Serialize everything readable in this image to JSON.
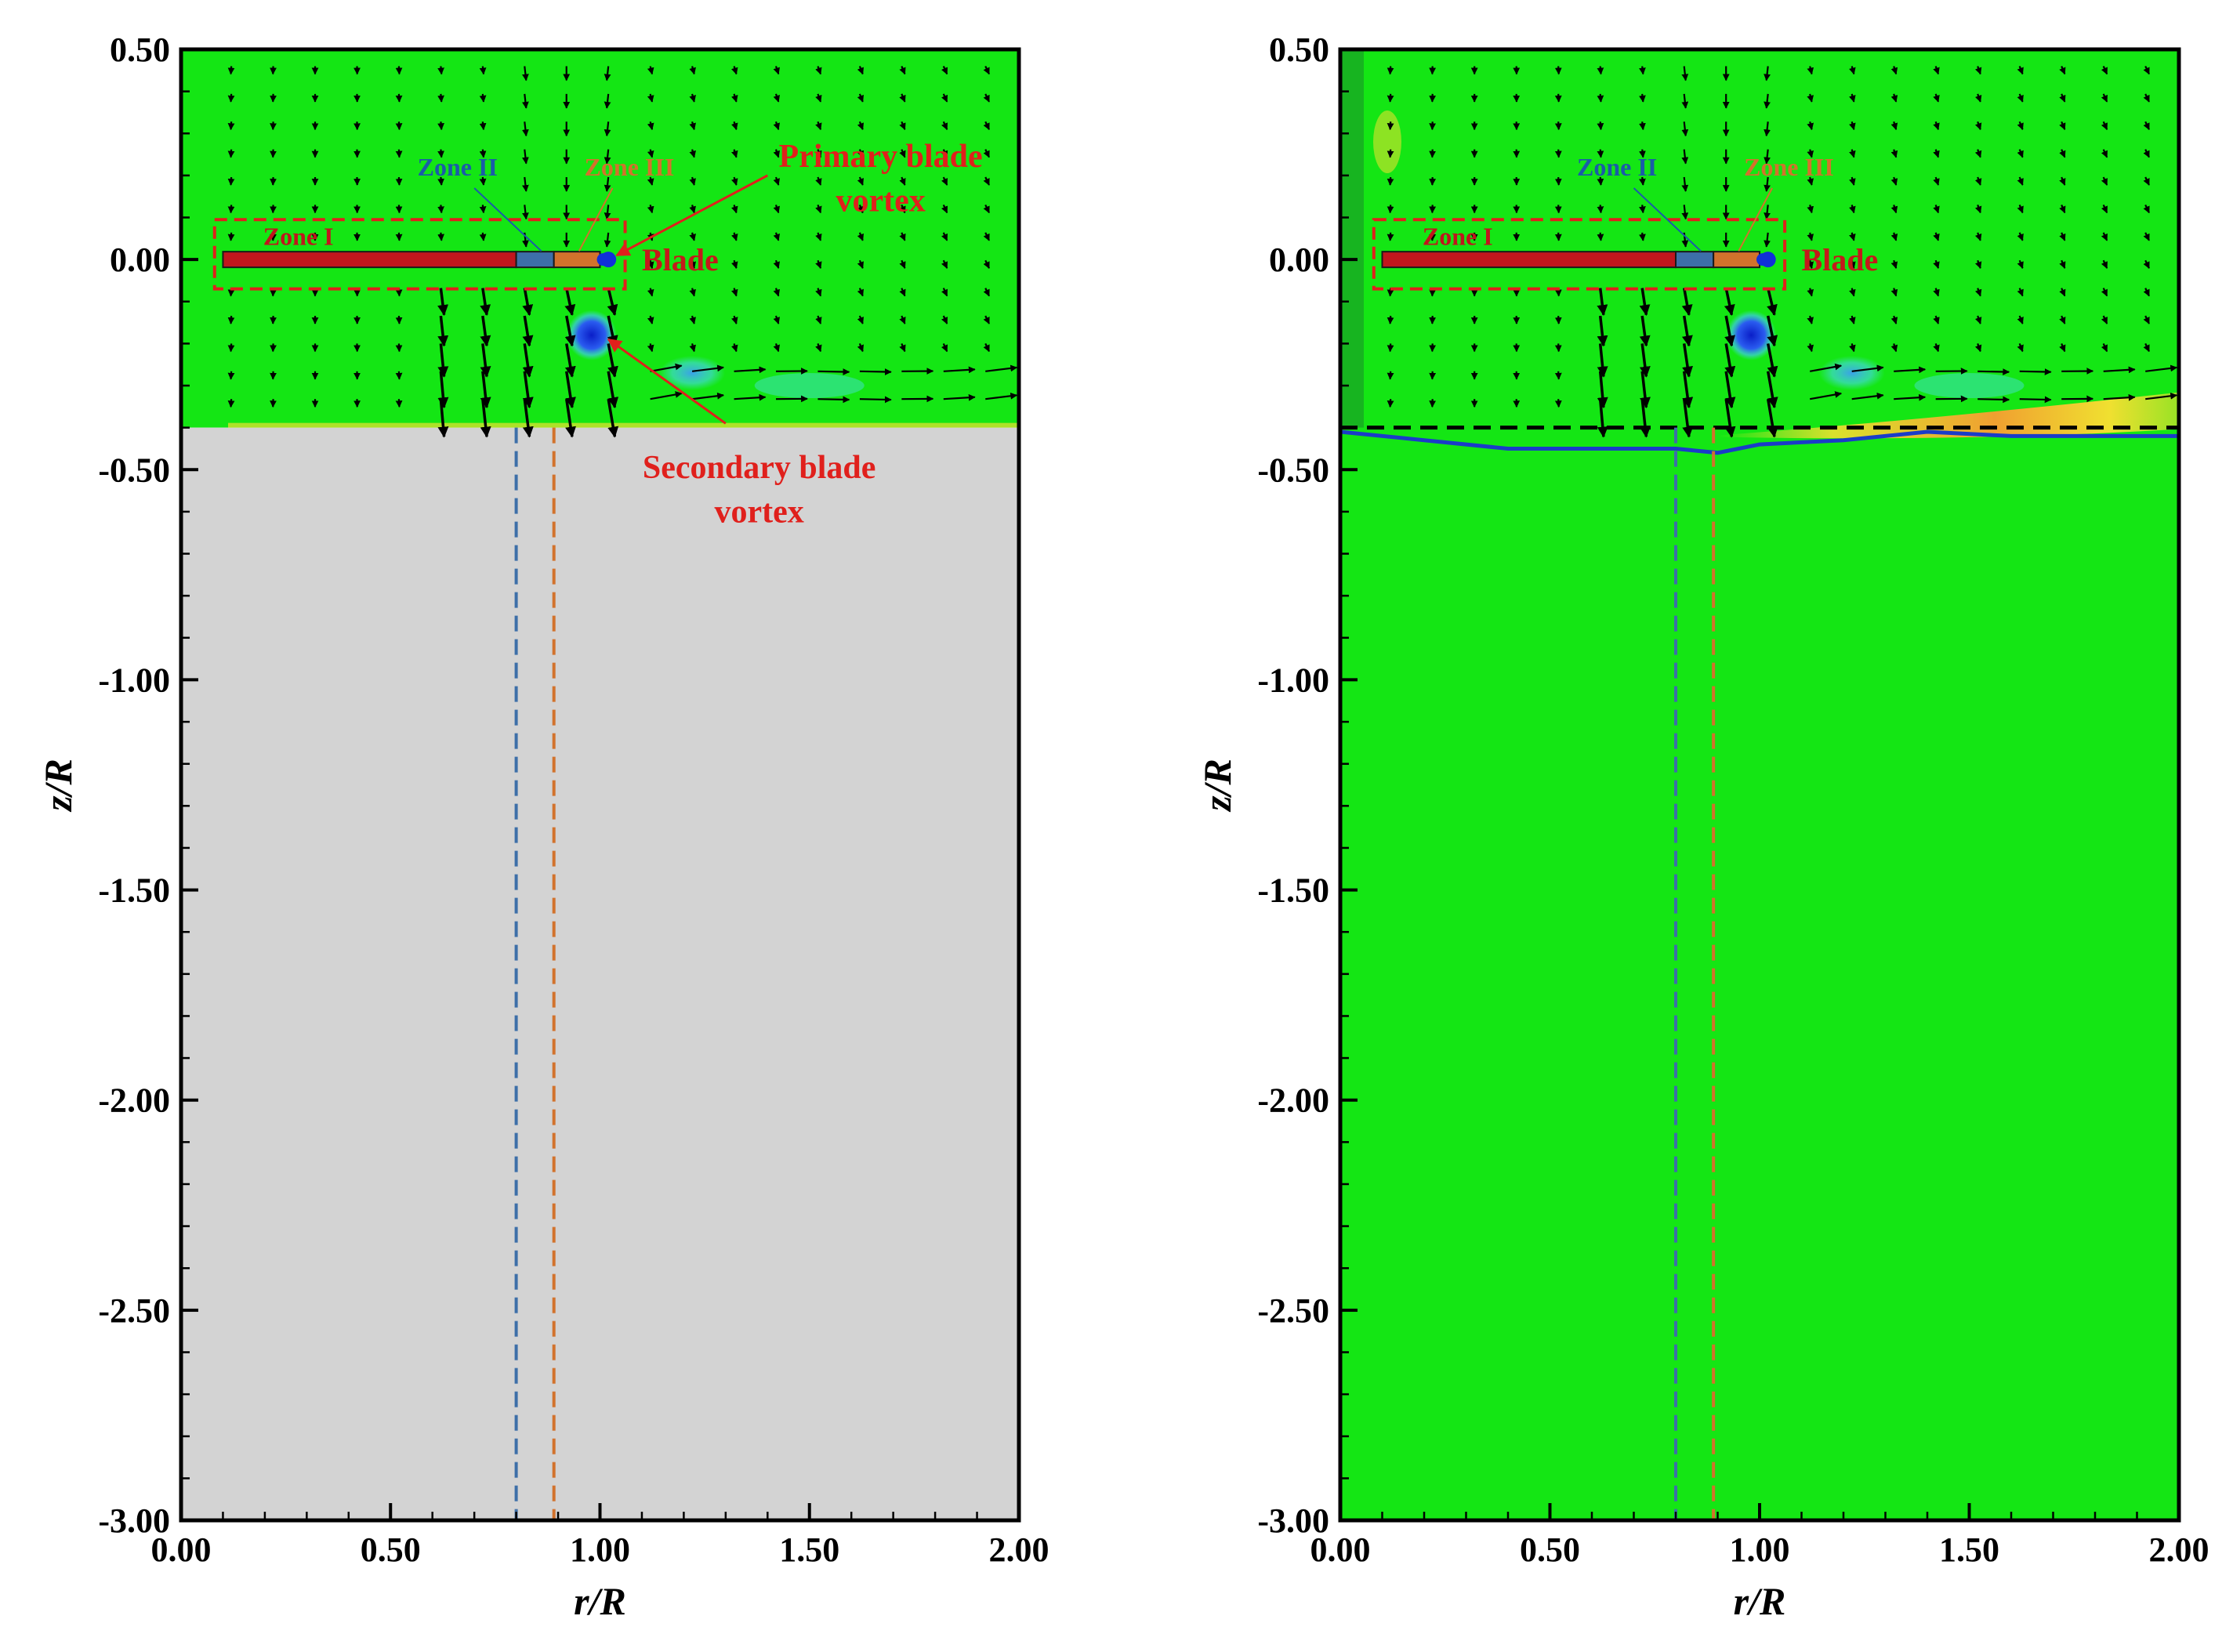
{
  "colors": {
    "flow_green": "#14e614",
    "gray_region": "#d3d3d3",
    "blade_red": "#c0161d",
    "zone2_blue": "#3d6fa8",
    "zone3_orange": "#d2722c",
    "annotation_red": "#e0201c",
    "vortex_blue": "#1030d8",
    "interface_blue": "#1a3cc8",
    "cyan": "#40e0c0",
    "yellow": "#f0e030",
    "orange": "#f07a20"
  },
  "chart_data": [
    {
      "type": "contour",
      "panel": "left",
      "xlabel": "r/R",
      "ylabel": "z/R",
      "xlim": [
        0.0,
        2.0
      ],
      "ylim": [
        -3.0,
        0.5
      ],
      "x_ticks": [
        "0.00",
        "0.50",
        "1.00",
        "1.50",
        "2.00"
      ],
      "y_ticks": [
        "0.50",
        "0.00",
        "-0.50",
        "-1.00",
        "-1.50",
        "-2.00",
        "-2.50",
        "-3.00"
      ],
      "computed_domain_bottom": -0.4,
      "blade": {
        "r_start": 0.1,
        "r_end": 1.0,
        "z": 0.0
      },
      "zones": [
        {
          "label": "Zone I",
          "r_start": 0.1,
          "r_end": 0.8
        },
        {
          "label": "Zone II",
          "r_start": 0.8,
          "r_end": 0.89
        },
        {
          "label": "Zone III",
          "r_start": 0.89,
          "r_end": 1.0
        }
      ],
      "zone_boundaries": [
        0.8,
        0.89
      ],
      "vortices": [
        {
          "name": "primary",
          "r": 1.02,
          "z": 0.0
        },
        {
          "name": "secondary",
          "r": 0.98,
          "z": -0.18
        },
        {
          "name": "wake",
          "r": 1.22,
          "z": -0.27
        }
      ],
      "annotations": {
        "primary_vortex": [
          "Primary blade",
          "vortex"
        ],
        "secondary_vortex": [
          "Secondary blade",
          "vortex"
        ],
        "blade": "Blade",
        "zone1": "Zone I",
        "zone2": "Zone II",
        "zone3": "Zone III"
      }
    },
    {
      "type": "contour",
      "panel": "right",
      "xlabel": "r/R",
      "ylabel": "z/R",
      "xlim": [
        0.0,
        2.0
      ],
      "ylim": [
        -3.0,
        0.5
      ],
      "x_ticks": [
        "0.00",
        "0.50",
        "1.00",
        "1.50",
        "2.00"
      ],
      "y_ticks": [
        "0.50",
        "0.00",
        "-0.50",
        "-1.00",
        "-1.50",
        "-2.00",
        "-2.50",
        "-3.00"
      ],
      "interface_z": -0.4,
      "free_surface_r": [
        0.0,
        0.2,
        0.4,
        0.6,
        0.8,
        0.9,
        1.0,
        1.2,
        1.4,
        1.6,
        1.8,
        2.0
      ],
      "free_surface_z": [
        -0.41,
        -0.43,
        -0.45,
        -0.45,
        -0.45,
        -0.46,
        -0.44,
        -0.43,
        -0.41,
        -0.42,
        -0.42,
        -0.42
      ],
      "blade": {
        "r_start": 0.1,
        "r_end": 1.0,
        "z": 0.0
      },
      "zones": [
        {
          "label": "Zone I",
          "r_start": 0.1,
          "r_end": 0.8
        },
        {
          "label": "Zone II",
          "r_start": 0.8,
          "r_end": 0.89
        },
        {
          "label": "Zone III",
          "r_start": 0.89,
          "r_end": 1.0
        }
      ],
      "zone_boundaries": [
        0.8,
        0.89
      ],
      "vortices": [
        {
          "name": "primary",
          "r": 1.02,
          "z": 0.0
        },
        {
          "name": "secondary",
          "r": 0.98,
          "z": -0.18
        },
        {
          "name": "wake",
          "r": 1.22,
          "z": -0.27
        }
      ],
      "annotations": {
        "blade": "Blade",
        "zone1": "Zone I",
        "zone2": "Zone II",
        "zone3": "Zone III"
      }
    }
  ]
}
